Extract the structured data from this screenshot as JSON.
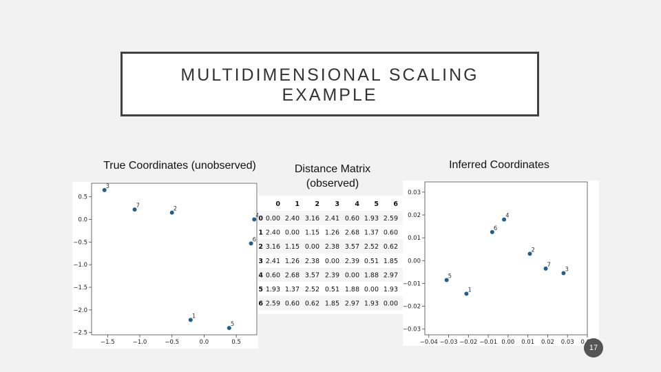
{
  "slide": {
    "title_line1": "MULTIDIMENSIONAL SCALING",
    "title_line2": "EXAMPLE",
    "number": "17"
  },
  "captions": {
    "left": "True Coordinates (unobserved)",
    "middle_line1": "Distance Matrix",
    "middle_line2": "(observed)",
    "right": "Inferred Coordinates"
  },
  "colors": {
    "point": "#1f5f8b",
    "background": "#f2f2f2",
    "title_border": "#404040"
  },
  "chart_data": [
    {
      "type": "scatter",
      "title": "True Coordinates (unobserved)",
      "xlim": [
        -1.75,
        0.82
      ],
      "ylim": [
        -2.55,
        0.8
      ],
      "xticks": [
        -1.5,
        -1.0,
        -0.5,
        0.0,
        0.5
      ],
      "xtick_labels": [
        "−1.5",
        "−1.0",
        "−0.5",
        "0.0",
        "0.5"
      ],
      "yticks": [
        0.5,
        0.0,
        -0.5,
        -1.0,
        -1.5,
        -2.0,
        -2.5
      ],
      "ytick_labels": [
        "0.5",
        "0.0",
        "−0.5",
        "−1.0",
        "−1.5",
        "−2.0",
        "−2.5"
      ],
      "points": [
        {
          "label": "3",
          "x": -1.55,
          "y": 0.65
        },
        {
          "label": "7",
          "x": -1.08,
          "y": 0.22
        },
        {
          "label": "2",
          "x": -0.5,
          "y": 0.15
        },
        {
          "label": "4",
          "x": 0.78,
          "y": 0.0
        },
        {
          "label": "6",
          "x": 0.73,
          "y": -0.53
        },
        {
          "label": "1",
          "x": -0.21,
          "y": -2.22
        },
        {
          "label": "5",
          "x": 0.39,
          "y": -2.4
        }
      ]
    },
    {
      "type": "table",
      "title": "Distance Matrix (observed)",
      "columns": [
        "",
        "0",
        "1",
        "2",
        "3",
        "4",
        "5",
        "6"
      ],
      "rows": [
        [
          "0",
          "0.00",
          "2.40",
          "3.16",
          "2.41",
          "0.60",
          "1.93",
          "2.59"
        ],
        [
          "1",
          "2.40",
          "0.00",
          "1.15",
          "1.26",
          "2.68",
          "1.37",
          "0.60"
        ],
        [
          "2",
          "3.16",
          "1.15",
          "0.00",
          "2.38",
          "3.57",
          "2.52",
          "0.62"
        ],
        [
          "3",
          "2.41",
          "1.26",
          "2.38",
          "0.00",
          "2.39",
          "0.51",
          "1.85"
        ],
        [
          "4",
          "0.60",
          "2.68",
          "3.57",
          "2.39",
          "0.00",
          "1.88",
          "2.97"
        ],
        [
          "5",
          "1.93",
          "1.37",
          "2.52",
          "0.51",
          "1.88",
          "0.00",
          "1.93"
        ],
        [
          "6",
          "2.59",
          "0.60",
          "0.62",
          "1.85",
          "2.97",
          "1.93",
          "0.00"
        ]
      ]
    },
    {
      "type": "scatter",
      "title": "Inferred Coordinates",
      "xlim": [
        -0.042,
        0.04
      ],
      "ylim": [
        -0.0325,
        0.0345
      ],
      "xticks": [
        -0.04,
        -0.03,
        -0.02,
        -0.01,
        0.0,
        0.01,
        0.02,
        0.03,
        0.04
      ],
      "xtick_labels": [
        "−0.04",
        "−0.03",
        "−0.02",
        "−0.01",
        "0.00",
        "0.01",
        "0.02",
        "0.03",
        "0.04"
      ],
      "yticks": [
        0.03,
        0.02,
        0.01,
        0.0,
        -0.01,
        -0.02,
        -0.03
      ],
      "ytick_labels": [
        "0.03",
        "0.02",
        "0.01",
        "0.00",
        "−0.01",
        "−0.02",
        "−0.03"
      ],
      "points": [
        {
          "label": "4",
          "x": -0.002,
          "y": 0.018
        },
        {
          "label": "6",
          "x": -0.008,
          "y": 0.0125
        },
        {
          "label": "2",
          "x": 0.011,
          "y": 0.003
        },
        {
          "label": "7",
          "x": 0.019,
          "y": -0.0035
        },
        {
          "label": "3",
          "x": 0.028,
          "y": -0.0055
        },
        {
          "label": "5",
          "x": -0.031,
          "y": -0.0085
        },
        {
          "label": "1",
          "x": -0.021,
          "y": -0.0145
        }
      ]
    }
  ]
}
